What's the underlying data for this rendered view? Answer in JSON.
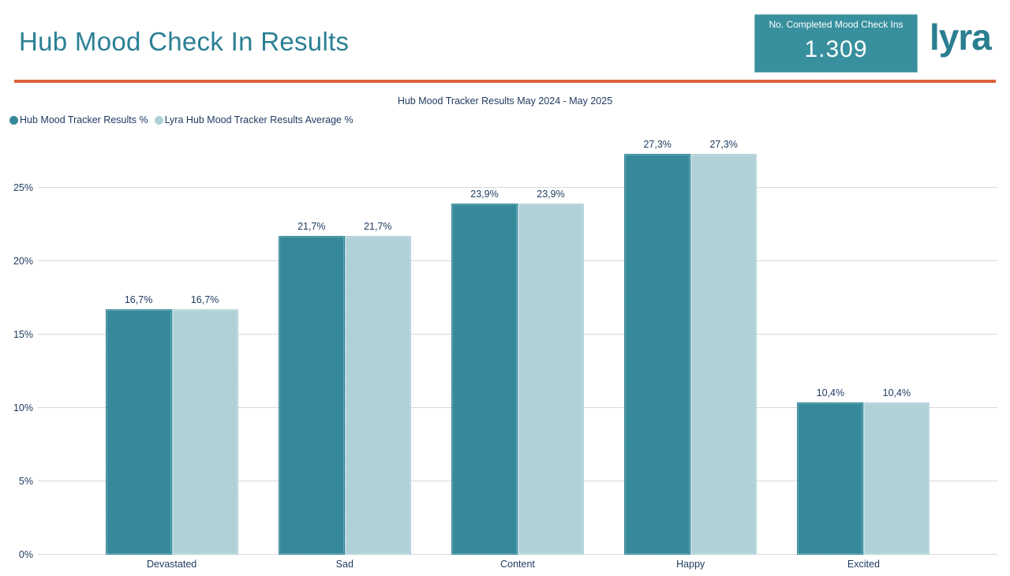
{
  "header": {
    "title": "Hub Mood Check In Results",
    "kpi": {
      "label": "No. Completed Mood Check Ins",
      "value": "1.309"
    },
    "logo_text": "lyra",
    "accent_color": "#d9623b",
    "title_color": "#2b8094",
    "kpi_background": "#38909e"
  },
  "chart_data": {
    "type": "bar",
    "title": "Hub Mood Tracker Results May 2024 - May 2025",
    "categories": [
      "Devastated",
      "Sad",
      "Content",
      "Happy",
      "Excited"
    ],
    "series": [
      {
        "name": "Hub Mood Tracker Results %",
        "color": "#35899b",
        "values": [
          16.7,
          21.7,
          23.9,
          27.3,
          10.4
        ],
        "value_labels": [
          "16,7%",
          "21,7%",
          "23,9%",
          "27,3%",
          "10,4%"
        ]
      },
      {
        "name": "Lyra Hub Mood Tracker Results Average %",
        "color": "#b0d1d8",
        "values": [
          16.7,
          21.7,
          23.9,
          27.3,
          10.4
        ],
        "value_labels": [
          "16,7%",
          "21,7%",
          "23,9%",
          "27,3%",
          "10,4%"
        ]
      }
    ],
    "xlabel": "",
    "ylabel": "",
    "ylim": [
      0,
      28.65
    ],
    "yticks": [
      0,
      5,
      10,
      15,
      20,
      25
    ],
    "ytick_labels": [
      "0%",
      "5%",
      "10%",
      "15%",
      "20%",
      "25%"
    ],
    "grid": true,
    "legend_position": "top-left",
    "gridline_color": "#d9d9d9",
    "text_color": "#1d3a5f"
  }
}
